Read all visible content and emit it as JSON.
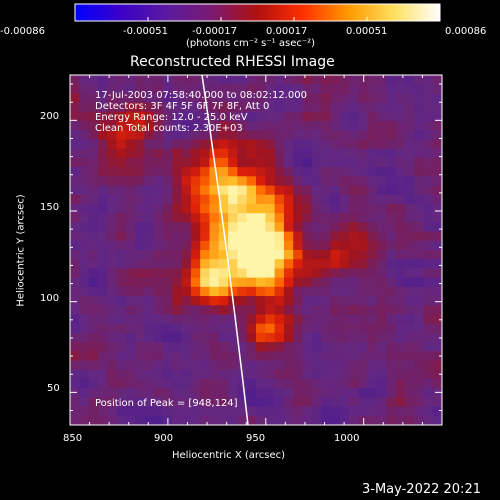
{
  "title": "Reconstructed RHESSI Image",
  "colorbar": {
    "labels": [
      "-0.00086",
      "-0.00051",
      "-0.00017",
      "0.00017",
      "0.00051",
      "0.00086"
    ],
    "unit_label": "(photons cm⁻² s⁻¹ asec⁻²)",
    "range": [
      -0.00086,
      0.00086
    ],
    "stops": [
      "#0000ff",
      "#3b00c8",
      "#5a1aa0",
      "#7a1a70",
      "#b01010",
      "#ff3000",
      "#ff9a00",
      "#ffe060",
      "#ffffff"
    ]
  },
  "info": {
    "line1": "17-Jul-2003 07:58:40.000 to 08:02:12.000",
    "line2": "Detectors: 3F 4F 5F 6F 7F 8F, Att 0",
    "line3": "Energy Range: 12.0 - 25.0 keV",
    "line4": "Clean     Total counts: 2.30E+03"
  },
  "peak_text": "Position of Peak = [948,124]",
  "axes": {
    "xlabel": "Heliocentric X (arcsec)",
    "ylabel": "Heliocentric Y (arcsec)",
    "xticks": [
      "850",
      "900",
      "950",
      "1000"
    ],
    "yticks": [
      "50",
      "100",
      "150",
      "200"
    ],
    "xlim": [
      850,
      1040
    ],
    "ylim": [
      32,
      225
    ]
  },
  "timestamp": "3-May-2022 20:21",
  "colors": {
    "background": "#000000",
    "frame": "#ffffff"
  }
}
